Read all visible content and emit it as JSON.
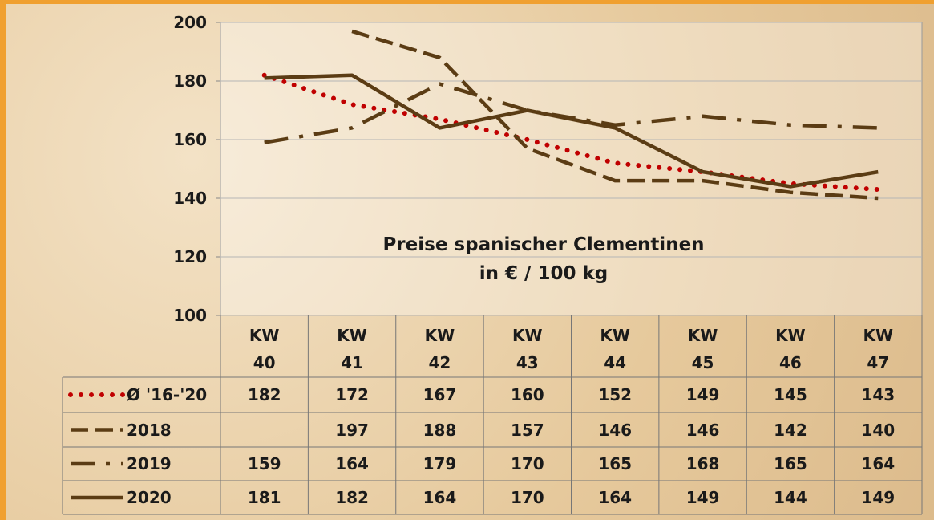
{
  "chart_data": {
    "type": "line",
    "title": "Preise spanischer Clementinen",
    "subtitle": "in € / 100 kg",
    "categories": [
      "KW 40",
      "KW 41",
      "KW 42",
      "KW 43",
      "KW 44",
      "KW 45",
      "KW 46",
      "KW 47"
    ],
    "series": [
      {
        "name": "Ø '16-'20",
        "color": "#c00000",
        "style": "dotted",
        "values": [
          182,
          172,
          167,
          160,
          152,
          149,
          145,
          143
        ]
      },
      {
        "name": "2018",
        "color": "#5b3c14",
        "style": "dashed",
        "values": [
          null,
          197,
          188,
          157,
          146,
          146,
          142,
          140
        ]
      },
      {
        "name": "2019",
        "color": "#5b3c14",
        "style": "dashdot",
        "values": [
          159,
          164,
          179,
          170,
          165,
          168,
          165,
          164
        ]
      },
      {
        "name": "2020",
        "color": "#5b3c14",
        "style": "solid",
        "values": [
          181,
          182,
          164,
          170,
          164,
          149,
          144,
          149
        ]
      }
    ],
    "ylim": [
      100,
      200
    ],
    "yticks": [
      100,
      120,
      140,
      160,
      180,
      200
    ],
    "grid": true
  }
}
